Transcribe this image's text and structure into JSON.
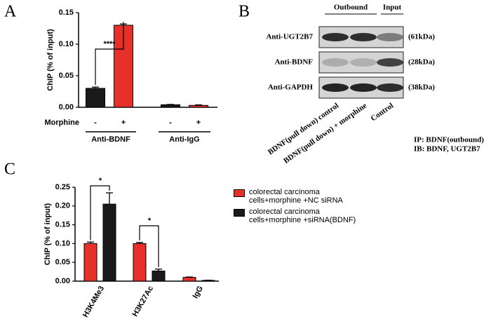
{
  "panel_labels": [
    "A",
    "B",
    "C"
  ],
  "chart_data": [
    {
      "type": "bar",
      "ylabel": "ChIP (% of input)",
      "categories": [
        "-",
        "+",
        "-",
        "+"
      ],
      "values": [
        0.03,
        0.13,
        0.004,
        0.003
      ],
      "errors": [
        0.002,
        0.002,
        0.0005,
        0.0008
      ],
      "colors": [
        "#1a1a1a",
        "#e8302a",
        "#1a1a1a",
        "#e8302a"
      ],
      "row_label": "Morphine",
      "groups": [
        "Anti-BDNF",
        "Anti-IgG"
      ],
      "annotations": [
        "****"
      ],
      "ylim": [
        0,
        0.15
      ],
      "yticks": [
        {
          "value": 0,
          "label": "0.00"
        },
        {
          "value": 0.05,
          "label": "0.05"
        },
        {
          "value": 0.1,
          "label": "0.10"
        },
        {
          "value": 0.15,
          "label": "0.15"
        }
      ]
    },
    {
      "type": "grouped-bar",
      "ylabel": "ChIP (% of input)",
      "categories": [
        "H3K4Me3",
        "H3K27Ac",
        "IgG"
      ],
      "series": [
        {
          "name": "colorectal carcinoma cells+morphine +NC siRNA",
          "color": "#e8302a",
          "values": [
            0.1,
            0.1,
            0.01
          ],
          "errors": [
            0.004,
            0.003,
            0.001
          ]
        },
        {
          "name": "colorectal carcinoma cells+morphine +siRNA(BDNF)",
          "color": "#1a1a1a",
          "values": [
            0.205,
            0.027,
            0.002
          ],
          "errors": [
            0.03,
            0.005,
            0.0005
          ]
        }
      ],
      "annotations": [
        "*",
        "*"
      ],
      "ylim": [
        0,
        0.25
      ],
      "yticks": [
        {
          "value": 0,
          "label": "0.00"
        },
        {
          "value": 0.05,
          "label": "0.05"
        },
        {
          "value": 0.1,
          "label": "0.10"
        },
        {
          "value": 0.15,
          "label": "0.15"
        },
        {
          "value": 0.2,
          "label": "0.20"
        },
        {
          "value": 0.25,
          "label": "0.25"
        }
      ]
    }
  ],
  "blot": {
    "headers": [
      "Outbound",
      "Input"
    ],
    "rows": [
      "Anti-UGT2B7",
      "Anti-BDNF",
      "Anti-GAPDH"
    ],
    "sizes": [
      "(61kDa)",
      "(28kDa)",
      "(38kDa)"
    ],
    "lanes": [
      "BDNF(pull down) control",
      "BDNF(pull down) + morphine",
      "Control"
    ],
    "notes": [
      "IP: BDNF(outbound)",
      "IB: BDNF, UGT2B7"
    ]
  }
}
